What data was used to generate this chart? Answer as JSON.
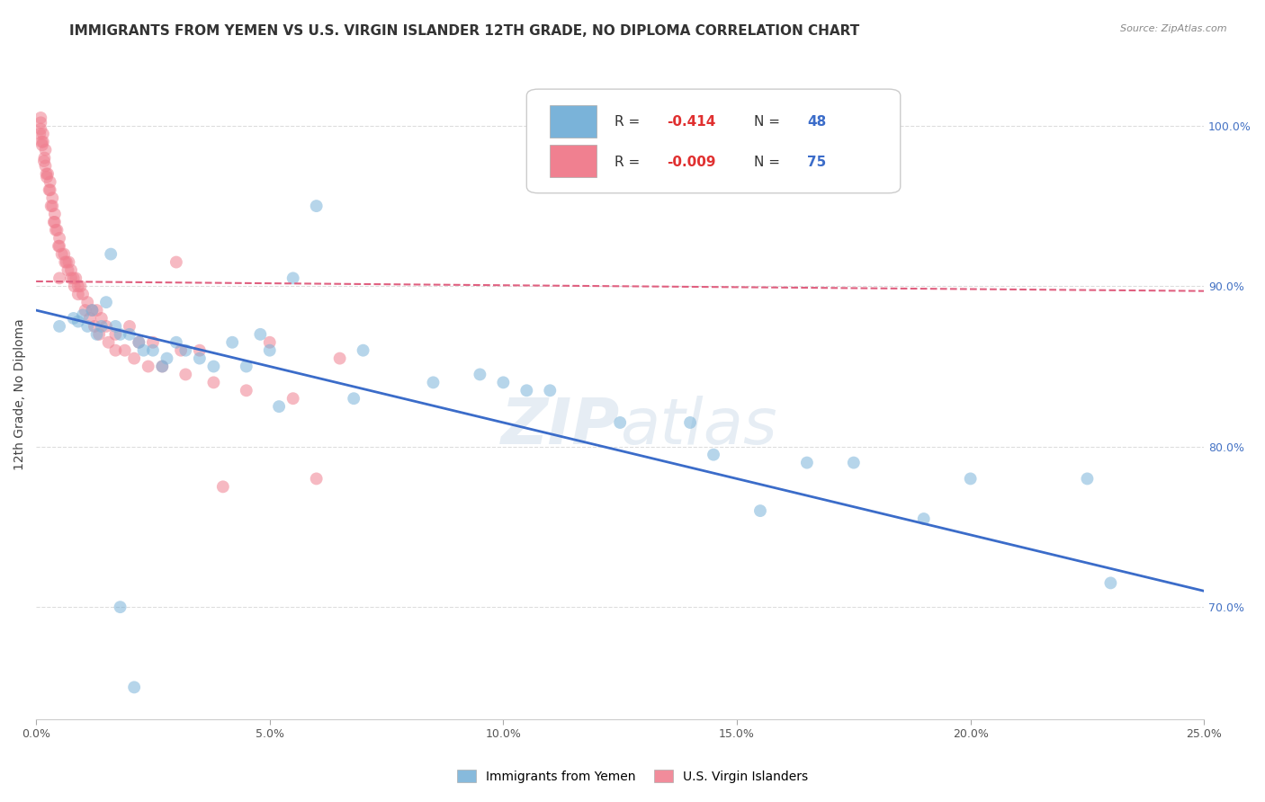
{
  "title": "IMMIGRANTS FROM YEMEN VS U.S. VIRGIN ISLANDER 12TH GRADE, NO DIPLOMA CORRELATION CHART",
  "source": "Source: ZipAtlas.com",
  "ylabel": "12th Grade, No Diploma",
  "xlim": [
    0.0,
    25.0
  ],
  "ylim": [
    63.0,
    103.5
  ],
  "x_ticks": [
    0.0,
    5.0,
    10.0,
    15.0,
    20.0,
    25.0
  ],
  "x_tick_labels": [
    "0.0%",
    "5.0%",
    "10.0%",
    "15.0%",
    "20.0%",
    "25.0%"
  ],
  "y_ticks": [
    70.0,
    80.0,
    90.0,
    100.0
  ],
  "y_tick_labels": [
    "70.0%",
    "80.0%",
    "90.0%",
    "100.0%"
  ],
  "legend_entries": [
    {
      "label": "Immigrants from Yemen",
      "color": "#aec6e8",
      "R": "-0.414",
      "N": "48"
    },
    {
      "label": "U.S. Virgin Islanders",
      "color": "#f4b8c8",
      "R": "-0.009",
      "N": "75"
    }
  ],
  "blue_scatter_x": [
    0.5,
    0.8,
    0.9,
    1.0,
    1.1,
    1.2,
    1.3,
    1.5,
    1.6,
    1.7,
    1.8,
    2.0,
    2.2,
    2.3,
    2.5,
    2.8,
    3.0,
    3.2,
    3.5,
    3.8,
    4.2,
    4.5,
    5.0,
    5.5,
    6.0,
    7.0,
    8.5,
    9.5,
    10.0,
    11.0,
    12.5,
    14.0,
    14.5,
    16.5,
    17.5,
    20.0,
    22.5,
    1.4,
    2.7,
    5.2,
    10.5,
    15.5,
    19.0,
    23.0,
    1.8,
    2.1,
    4.8,
    6.8
  ],
  "blue_scatter_y": [
    87.5,
    88.0,
    87.8,
    88.2,
    87.5,
    88.5,
    87.0,
    89.0,
    92.0,
    87.5,
    87.0,
    87.0,
    86.5,
    86.0,
    86.0,
    85.5,
    86.5,
    86.0,
    85.5,
    85.0,
    86.5,
    85.0,
    86.0,
    90.5,
    95.0,
    86.0,
    84.0,
    84.5,
    84.0,
    83.5,
    81.5,
    81.5,
    79.5,
    79.0,
    79.0,
    78.0,
    78.0,
    87.5,
    85.0,
    82.5,
    83.5,
    76.0,
    75.5,
    71.5,
    70.0,
    65.0,
    87.0,
    83.0
  ],
  "pink_scatter_x": [
    0.1,
    0.1,
    0.1,
    0.15,
    0.15,
    0.2,
    0.2,
    0.25,
    0.3,
    0.3,
    0.35,
    0.35,
    0.4,
    0.4,
    0.45,
    0.5,
    0.5,
    0.6,
    0.65,
    0.7,
    0.75,
    0.8,
    0.85,
    0.9,
    0.95,
    1.0,
    1.1,
    1.2,
    1.3,
    1.4,
    1.5,
    1.7,
    2.0,
    2.2,
    2.5,
    3.0,
    3.5,
    4.0,
    5.0,
    6.5,
    0.12,
    0.18,
    0.22,
    0.28,
    0.32,
    0.38,
    0.42,
    0.48,
    0.55,
    0.62,
    0.68,
    0.75,
    0.82,
    0.9,
    1.05,
    1.15,
    1.25,
    1.35,
    1.55,
    1.7,
    1.9,
    2.1,
    2.4,
    2.7,
    3.2,
    3.8,
    4.5,
    5.5,
    6.0,
    0.08,
    0.13,
    0.17,
    0.23,
    0.5,
    3.1
  ],
  "pink_scatter_y": [
    100.5,
    100.2,
    99.8,
    99.5,
    99.0,
    98.5,
    97.5,
    97.0,
    96.5,
    96.0,
    95.5,
    95.0,
    94.5,
    94.0,
    93.5,
    93.0,
    92.5,
    92.0,
    91.5,
    91.5,
    91.0,
    90.5,
    90.5,
    90.0,
    90.0,
    89.5,
    89.0,
    88.5,
    88.5,
    88.0,
    87.5,
    87.0,
    87.5,
    86.5,
    86.5,
    91.5,
    86.0,
    77.5,
    86.5,
    85.5,
    99.0,
    98.0,
    97.0,
    96.0,
    95.0,
    94.0,
    93.5,
    92.5,
    92.0,
    91.5,
    91.0,
    90.5,
    90.0,
    89.5,
    88.5,
    88.0,
    87.5,
    87.0,
    86.5,
    86.0,
    86.0,
    85.5,
    85.0,
    85.0,
    84.5,
    84.0,
    83.5,
    83.0,
    78.0,
    99.5,
    98.8,
    97.8,
    96.8,
    90.5,
    86.0
  ],
  "blue_line_x": [
    0.0,
    25.0
  ],
  "blue_line_y": [
    88.5,
    71.0
  ],
  "pink_line_x": [
    0.0,
    25.0
  ],
  "pink_line_y": [
    90.3,
    89.7
  ],
  "scatter_alpha": 0.55,
  "scatter_size": 100,
  "blue_color": "#7ab3d9",
  "pink_color": "#f08090",
  "blue_line_color": "#3b6cc9",
  "pink_line_color": "#e06080",
  "grid_color": "#dddddd",
  "background_color": "#ffffff",
  "title_fontsize": 11,
  "axis_label_fontsize": 10,
  "tick_fontsize": 9,
  "legend_R_color": "#e03030",
  "legend_N_color": "#3b6cc9"
}
